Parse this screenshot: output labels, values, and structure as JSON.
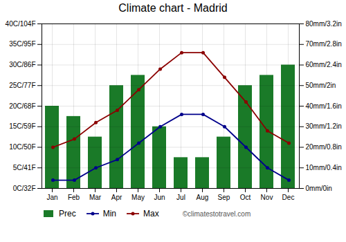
{
  "chart_data": {
    "type": "bar",
    "title": "Climate chart - Madrid",
    "categories": [
      "Jan",
      "Feb",
      "Mar",
      "Apr",
      "May",
      "Jun",
      "Jul",
      "Aug",
      "Sep",
      "Oct",
      "Nov",
      "Dec"
    ],
    "series": [
      {
        "name": "Prec",
        "type": "bar",
        "axis": "y2",
        "color": "#1a7a28",
        "values": [
          40,
          35,
          25,
          50,
          55,
          30,
          15,
          15,
          25,
          50,
          55,
          60
        ]
      },
      {
        "name": "Min",
        "type": "line",
        "marker": "circle",
        "color": "#00008B",
        "values": [
          2,
          2,
          5,
          7,
          11,
          15,
          18,
          18,
          15,
          10,
          5,
          2
        ]
      },
      {
        "name": "Max",
        "type": "line",
        "marker": "circle",
        "color": "#8B0000",
        "values": [
          10,
          12,
          16,
          19,
          24,
          29,
          33,
          33,
          27,
          21,
          14,
          11
        ]
      }
    ],
    "ylim": [
      0,
      40
    ],
    "yticks": [
      {
        "value": 0,
        "label": "0C/32F"
      },
      {
        "value": 5,
        "label": "5C/41F"
      },
      {
        "value": 10,
        "label": "10C/50F"
      },
      {
        "value": 15,
        "label": "15C/59F"
      },
      {
        "value": 20,
        "label": "20C/68F"
      },
      {
        "value": 25,
        "label": "25C/77F"
      },
      {
        "value": 30,
        "label": "30C/86F"
      },
      {
        "value": 35,
        "label": "35C/95F"
      },
      {
        "value": 40,
        "label": "40C/104F"
      }
    ],
    "y2lim": [
      0,
      80
    ],
    "y2ticks": [
      {
        "value": 0,
        "label": "0mm/0in"
      },
      {
        "value": 10,
        "label": "10mm/0.4in"
      },
      {
        "value": 20,
        "label": "20mm/0.8in"
      },
      {
        "value": 30,
        "label": "30mm/1.2in"
      },
      {
        "value": 40,
        "label": "40mm/1.6in"
      },
      {
        "value": 50,
        "label": "50mm/2in"
      },
      {
        "value": 60,
        "label": "60mm/2.4in"
      },
      {
        "value": 70,
        "label": "70mm/2.8in"
      },
      {
        "value": 80,
        "label": "80mm/3.2in"
      }
    ],
    "grid": true,
    "legend": "bottom",
    "annotations": [
      "©climatestotravel.com"
    ]
  }
}
